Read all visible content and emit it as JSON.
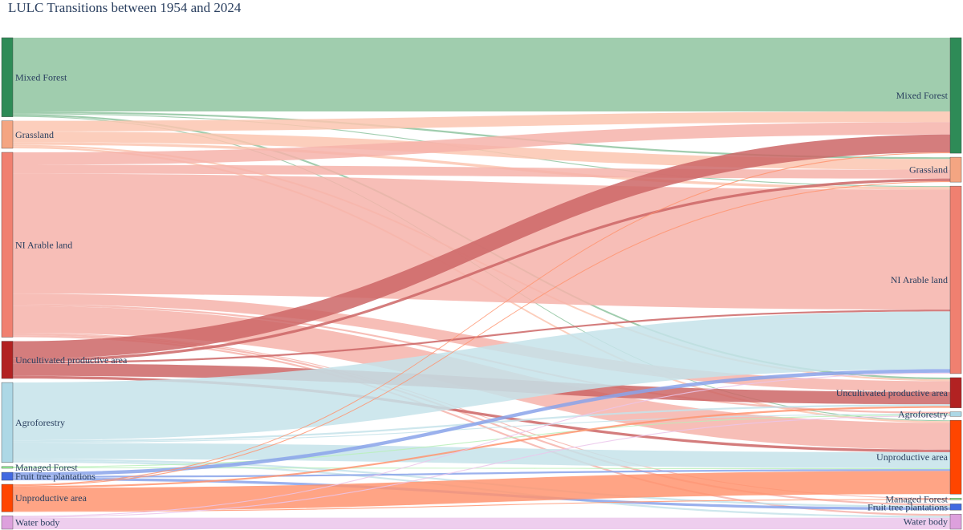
{
  "colors": {
    "text": "#2a3f5f",
    "background": "#ffffff"
  },
  "chart_data": {
    "type": "sankey",
    "title": "LULC Transitions between 1954 and 2024",
    "nodes_left": [
      {
        "id": "mf",
        "label": "Mixed Forest",
        "color": "#2e8b57",
        "link_color": "#8fc4a0"
      },
      {
        "id": "gr",
        "label": "Grassland",
        "color": "#f4a582",
        "link_color": "#fbc6b0"
      },
      {
        "id": "ni",
        "label": "NI Arable land",
        "color": "#f08070",
        "link_color": "#f6b3aa"
      },
      {
        "id": "up",
        "label": "Uncultivated productive area",
        "color": "#b22222",
        "link_color": "#cc6666"
      },
      {
        "id": "ag",
        "label": "Agroforestry",
        "color": "#add8e6",
        "link_color": "#c6e3ea"
      },
      {
        "id": "man",
        "label": "Managed Forest",
        "color": "#90ee90",
        "link_color": "#b8f0b8"
      },
      {
        "id": "ft",
        "label": "Fruit tree plantations",
        "color": "#4169e1",
        "link_color": "#8aa3ea"
      },
      {
        "id": "un",
        "label": "Unproductive area",
        "color": "#ff4500",
        "link_color": "#ff9470"
      },
      {
        "id": "wb",
        "label": "Water body",
        "color": "#dda0dd",
        "link_color": "#ebc6eb"
      }
    ],
    "nodes_right": [
      {
        "id": "mf",
        "label": "Mixed Forest",
        "color": "#2e8b57"
      },
      {
        "id": "gr",
        "label": "Grassland",
        "color": "#f4a582"
      },
      {
        "id": "ni",
        "label": "NI Arable land",
        "color": "#f08070"
      },
      {
        "id": "up",
        "label": "Uncultivated productive area",
        "color": "#b22222"
      },
      {
        "id": "ag",
        "label": "Agroforestry",
        "color": "#add8e6"
      },
      {
        "id": "un",
        "label": "Unproductive area",
        "color": "#ff4500"
      },
      {
        "id": "man",
        "label": "Managed Forest",
        "color": "#90ee90"
      },
      {
        "id": "ft",
        "label": "Fruit tree plantations",
        "color": "#4169e1"
      },
      {
        "id": "wb",
        "label": "Water body",
        "color": "#dda0dd"
      }
    ],
    "links": [
      {
        "source": "mf",
        "target": "mf",
        "value": 83
      },
      {
        "source": "mf",
        "target": "gr",
        "value": 2
      },
      {
        "source": "mf",
        "target": "ni",
        "value": 1
      },
      {
        "source": "mf",
        "target": "up",
        "value": 2
      },
      {
        "source": "mf",
        "target": "un",
        "value": 1
      },
      {
        "source": "gr",
        "target": "mf",
        "value": 12
      },
      {
        "source": "gr",
        "target": "gr",
        "value": 12
      },
      {
        "source": "gr",
        "target": "ni",
        "value": 3
      },
      {
        "source": "gr",
        "target": "up",
        "value": 2
      },
      {
        "source": "gr",
        "target": "un",
        "value": 2
      },
      {
        "source": "ni",
        "target": "mf",
        "value": 14
      },
      {
        "source": "ni",
        "target": "gr",
        "value": 10
      },
      {
        "source": "ni",
        "target": "ni",
        "value": 135
      },
      {
        "source": "ni",
        "target": "up",
        "value": 12
      },
      {
        "source": "ni",
        "target": "ag",
        "value": 2
      },
      {
        "source": "ni",
        "target": "un",
        "value": 30
      },
      {
        "source": "ni",
        "target": "man",
        "value": 1
      },
      {
        "source": "ni",
        "target": "ft",
        "value": 2
      },
      {
        "source": "ni",
        "target": "wb",
        "value": 2
      },
      {
        "source": "up",
        "target": "mf",
        "value": 20
      },
      {
        "source": "up",
        "target": "gr",
        "value": 3
      },
      {
        "source": "up",
        "target": "ni",
        "value": 2
      },
      {
        "source": "up",
        "target": "up",
        "value": 14
      },
      {
        "source": "up",
        "target": "un",
        "value": 3
      },
      {
        "source": "ag",
        "target": "ni",
        "value": 65
      },
      {
        "source": "ag",
        "target": "up",
        "value": 2
      },
      {
        "source": "ag",
        "target": "ag",
        "value": 1
      },
      {
        "source": "ag",
        "target": "un",
        "value": 18
      },
      {
        "source": "ag",
        "target": "ft",
        "value": 2
      },
      {
        "source": "ag",
        "target": "wb",
        "value": 2
      },
      {
        "source": "man",
        "target": "ag",
        "value": 1
      },
      {
        "source": "man",
        "target": "un",
        "value": 1
      },
      {
        "source": "ft",
        "target": "ni",
        "value": 4
      },
      {
        "source": "ft",
        "target": "un",
        "value": 2
      },
      {
        "source": "ft",
        "target": "ft",
        "value": 3
      },
      {
        "source": "un",
        "target": "mf",
        "value": 1
      },
      {
        "source": "un",
        "target": "gr",
        "value": 1
      },
      {
        "source": "un",
        "target": "up",
        "value": 2
      },
      {
        "source": "un",
        "target": "un",
        "value": 26
      },
      {
        "source": "un",
        "target": "man",
        "value": 1
      },
      {
        "source": "wb",
        "target": "ni",
        "value": 1
      },
      {
        "source": "wb",
        "target": "ag",
        "value": 1
      },
      {
        "source": "wb",
        "target": "wb",
        "value": 13
      }
    ]
  }
}
